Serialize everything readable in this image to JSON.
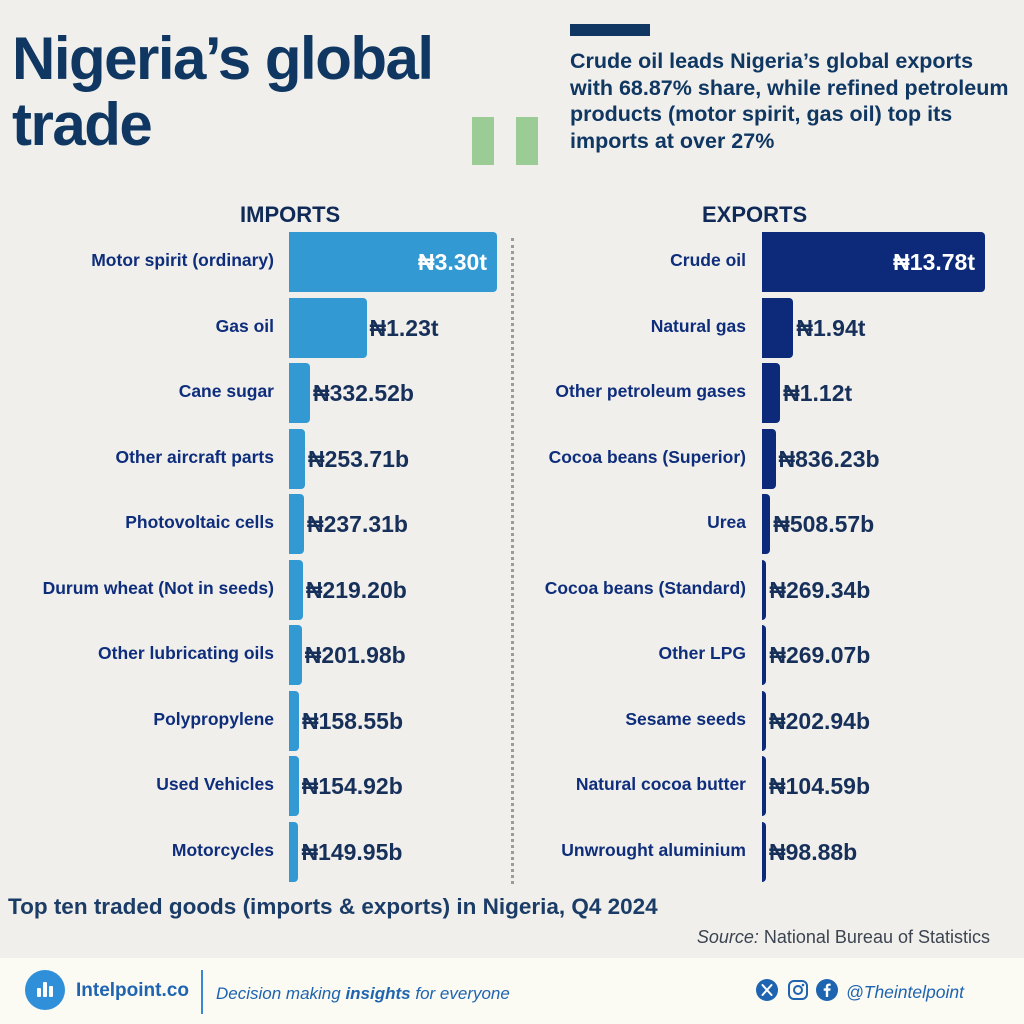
{
  "title": "Nigeria’s global trade",
  "subtitle": "Crude oil leads Nigeria’s global exports with 68.87% share, while refined petroleum products (motor spirit, gas oil) top its imports at over 27%",
  "chart_data": [
    {
      "type": "bar",
      "orientation": "horizontal",
      "title": "IMPORTS",
      "color": "#3399d3",
      "unit": "₦ billions",
      "categories": [
        "Motor spirit (ordinary)",
        "Gas oil",
        "Cane sugar",
        "Other aircraft parts",
        "Photovoltaic cells",
        "Durum wheat (Not in seeds)",
        "Other lubricating oils",
        "Polypropylene",
        "Used Vehicles",
        "Motorcycles"
      ],
      "values": [
        3300,
        1230,
        332.52,
        253.71,
        237.31,
        219.2,
        201.98,
        158.55,
        154.92,
        149.95
      ],
      "labels": [
        "₦3.30t",
        "₦1.23t",
        "₦332.52b",
        "₦253.71b",
        "₦237.31b",
        "₦219.20b",
        "₦201.98b",
        "₦158.55b",
        "₦154.92b",
        "₦149.95b"
      ]
    },
    {
      "type": "bar",
      "orientation": "horizontal",
      "title": "EXPORTS",
      "color": "#0d2a7a",
      "unit": "₦ billions",
      "categories": [
        "Crude oil",
        "Natural gas",
        "Other petroleum gases",
        "Cocoa beans (Superior)",
        "Urea",
        "Cocoa beans (Standard)",
        "Other LPG",
        "Sesame seeds",
        "Natural cocoa butter",
        "Unwrought aluminium"
      ],
      "values": [
        13780,
        1940,
        1120,
        836.23,
        508.57,
        269.34,
        269.07,
        202.94,
        104.59,
        98.88
      ],
      "labels": [
        "₦13.78t",
        "₦1.94t",
        "₦1.12t",
        "₦836.23b",
        "₦508.57b",
        "₦269.34b",
        "₦269.07b",
        "₦202.94b",
        "₦104.59b",
        "₦98.88b"
      ]
    }
  ],
  "caption": "Top ten traded goods (imports & exports) in Nigeria, Q4 2024",
  "source_label": "Source:",
  "source_text": "National Bureau of Statistics",
  "footer": {
    "brand": "Intelpoint.co",
    "tagline_pre": "Decision making ",
    "tagline_bold": "insights",
    "tagline_post": " for everyone",
    "handle": "@Theintelpoint",
    "social_icons": [
      "x-icon",
      "instagram-icon",
      "facebook-icon"
    ]
  }
}
